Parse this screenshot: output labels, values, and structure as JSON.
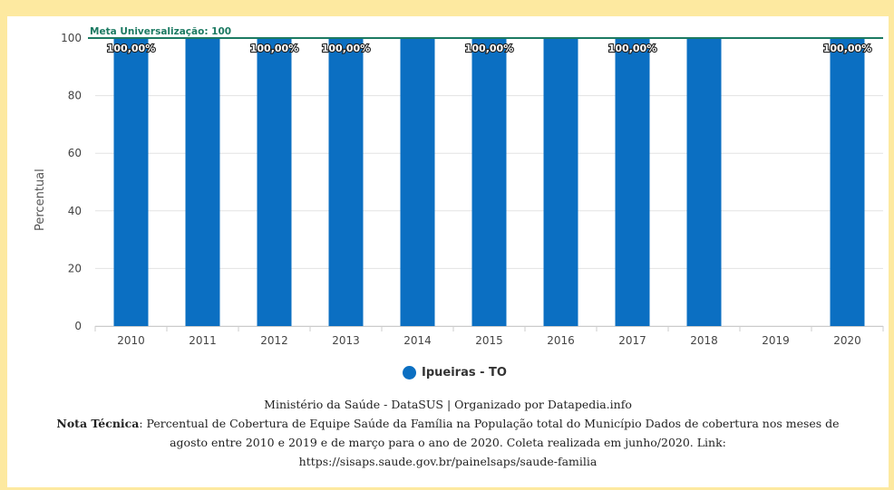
{
  "chart_data": {
    "type": "bar",
    "categories": [
      "2010",
      "2011",
      "2012",
      "2013",
      "2014",
      "2015",
      "2016",
      "2017",
      "2018",
      "2019",
      "2020"
    ],
    "series": [
      {
        "name": "Ipueiras - TO",
        "values": [
          100,
          100,
          100,
          100,
          100,
          100,
          100,
          100,
          100,
          0,
          100
        ],
        "data_labels": [
          "100,00%",
          "",
          "100,00%",
          "100,00%",
          "",
          "100,00%",
          "",
          "100,00%",
          "",
          "",
          "100,00%"
        ]
      }
    ],
    "ylabel": "Percentual",
    "ylim": [
      0,
      100
    ],
    "yticks": [
      0,
      20,
      40,
      60,
      80,
      100
    ],
    "grid": true,
    "legend": "bottom-center",
    "reference_line": {
      "label": "Meta Universalização: 100",
      "value": 100,
      "color": "#1c7a62"
    },
    "bar_color": "#0b6fc2"
  },
  "footer": {
    "source": "Ministério da Saúde - DataSUS | Organizado por Datapedia.info",
    "note_label": "Nota Técnica",
    "note_text": ": Percentual de Cobertura de Equipe Saúde da Família na População total do Município Dados de cobertura nos meses de",
    "note_line2": "agosto entre 2010 e 2019 e de março para o ano de 2020. Coleta realizada em junho/2020. Link:",
    "link": "https://sisaps.saude.gov.br/painelsaps/saude-familia"
  }
}
